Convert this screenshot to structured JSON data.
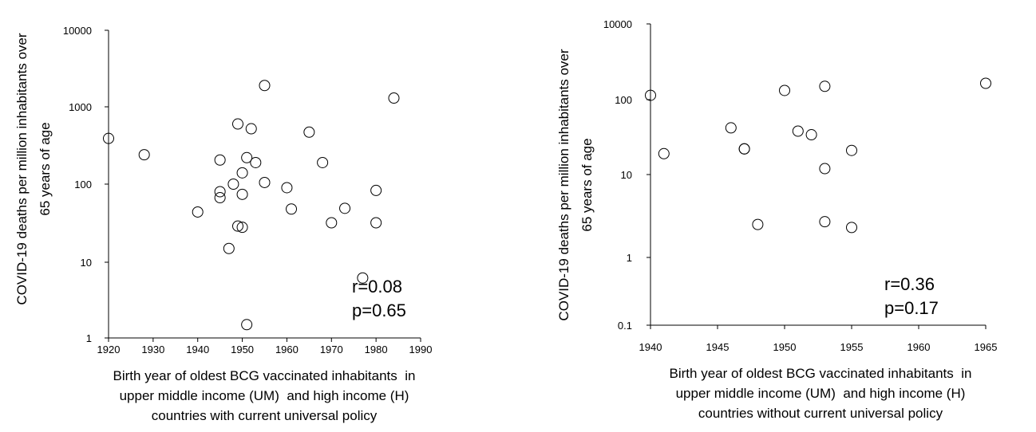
{
  "chart_data": [
    {
      "type": "scatter",
      "yscale": "log",
      "ylabel": [
        "COVID-19 deaths per million inhabitants over",
        "65 years of age"
      ],
      "xlabel": [
        "Birth year of oldest BCG vaccinated inhabitants  in",
        "upper middle income (UM)  and high income (H)",
        "countries with current universal policy"
      ],
      "xlim": [
        1920,
        1990
      ],
      "ylim": [
        1,
        10000
      ],
      "xticks": [
        "1920",
        "1930",
        "1940",
        "1950",
        "1960",
        "1970",
        "1980",
        "1990"
      ],
      "yticks": [
        "1",
        "10",
        "100",
        "1000",
        "10000"
      ],
      "annotation": [
        "r=0.08",
        "p=0.65"
      ],
      "points": [
        [
          1920,
          390
        ],
        [
          1928,
          240
        ],
        [
          1940,
          44
        ],
        [
          1945,
          205
        ],
        [
          1945,
          80
        ],
        [
          1945,
          67
        ],
        [
          1947,
          15
        ],
        [
          1948,
          100
        ],
        [
          1949,
          600
        ],
        [
          1949,
          29
        ],
        [
          1950,
          140
        ],
        [
          1950,
          74
        ],
        [
          1950,
          28
        ],
        [
          1951,
          220
        ],
        [
          1951,
          1.5
        ],
        [
          1952,
          520
        ],
        [
          1953,
          190
        ],
        [
          1955,
          1900
        ],
        [
          1955,
          105
        ],
        [
          1960,
          90
        ],
        [
          1961,
          48
        ],
        [
          1965,
          470
        ],
        [
          1968,
          190
        ],
        [
          1970,
          32
        ],
        [
          1973,
          49
        ],
        [
          1977,
          6.2
        ],
        [
          1980,
          83
        ],
        [
          1980,
          32
        ],
        [
          1984,
          1300
        ]
      ]
    },
    {
      "type": "scatter",
      "yscale": "log",
      "ylabel": [
        "COVID-19 deaths per million inhabitants over",
        "65 years of age"
      ],
      "xlabel": [
        "Birth year of oldest BCG vaccinated inhabitants  in",
        "upper middle income (UM)  and high income (H)",
        "countries without current universal policy"
      ],
      "xlim": [
        1940,
        1965
      ],
      "ylim": [
        0.1,
        10000
      ],
      "xticks": [
        "1940",
        "1945",
        "1950",
        "1955",
        "1960",
        "1965"
      ],
      "yticks": [
        "0.1",
        "1",
        "10",
        "100",
        "10000"
      ],
      "annotation": [
        "r=0.36",
        "p=0.17"
      ],
      "points": [
        [
          1940,
          130
        ],
        [
          1941,
          19
        ],
        [
          1946,
          42
        ],
        [
          1947,
          22
        ],
        [
          1947,
          22
        ],
        [
          1948,
          2.5
        ],
        [
          1950,
          175
        ],
        [
          1951,
          38
        ],
        [
          1952,
          34
        ],
        [
          1953,
          225
        ],
        [
          1953,
          12
        ],
        [
          1953,
          2.7
        ],
        [
          1955,
          21
        ],
        [
          1955,
          2.3
        ],
        [
          1965,
          270
        ]
      ]
    }
  ]
}
